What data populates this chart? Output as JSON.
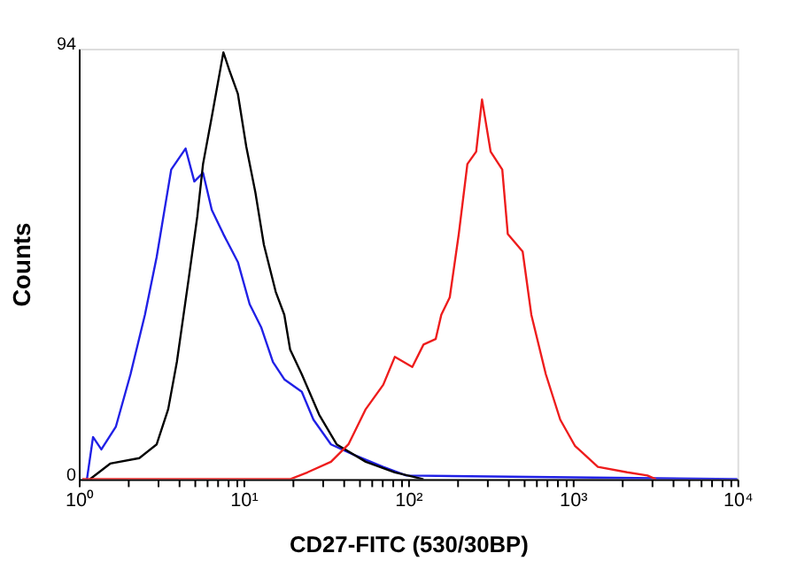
{
  "chart_data": {
    "type": "line",
    "xlabel": "CD27-FITC (530/30BP)",
    "ylabel": "Counts",
    "log": "x",
    "grid": false,
    "legend": false,
    "marker": "none",
    "line_style": "solid",
    "xlim": [
      1,
      10000
    ],
    "ylim": [
      0,
      94
    ],
    "yticks": [
      0,
      94
    ],
    "xticks": [
      {
        "value": 1,
        "label": "10⁰"
      },
      {
        "value": 2,
        "label": null
      },
      {
        "value": 3,
        "label": null
      },
      {
        "value": 4,
        "label": null
      },
      {
        "value": 5,
        "label": null
      },
      {
        "value": 6,
        "label": null
      },
      {
        "value": 7,
        "label": null
      },
      {
        "value": 8,
        "label": null
      },
      {
        "value": 9,
        "label": null
      },
      {
        "value": 10,
        "label": "10¹"
      },
      {
        "value": 20,
        "label": null
      },
      {
        "value": 30,
        "label": null
      },
      {
        "value": 40,
        "label": null
      },
      {
        "value": 50,
        "label": null
      },
      {
        "value": 60,
        "label": null
      },
      {
        "value": 70,
        "label": null
      },
      {
        "value": 80,
        "label": null
      },
      {
        "value": 90,
        "label": null
      },
      {
        "value": 100,
        "label": "10²"
      },
      {
        "value": 200,
        "label": null
      },
      {
        "value": 300,
        "label": null
      },
      {
        "value": 400,
        "label": null
      },
      {
        "value": 500,
        "label": null
      },
      {
        "value": 600,
        "label": null
      },
      {
        "value": 700,
        "label": null
      },
      {
        "value": 800,
        "label": null
      },
      {
        "value": 900,
        "label": null
      },
      {
        "value": 1000,
        "label": "10³"
      },
      {
        "value": 2000,
        "label": null
      },
      {
        "value": 3000,
        "label": null
      },
      {
        "value": 4000,
        "label": null
      },
      {
        "value": 5000,
        "label": null
      },
      {
        "value": 6000,
        "label": null
      },
      {
        "value": 7000,
        "label": null
      },
      {
        "value": 8000,
        "label": null
      },
      {
        "value": 9000,
        "label": null
      },
      {
        "value": 10000,
        "label": "10⁴"
      }
    ],
    "series": [
      {
        "color": "#2020e6",
        "x": [
          1.12,
          1.22,
          1.37,
          1.68,
          2.06,
          2.52,
          2.97,
          3.64,
          4.45,
          5.03,
          5.68,
          6.42,
          7.55,
          9.25,
          10.9,
          12.8,
          15.1,
          17.7,
          22.6,
          26.6,
          34,
          47,
          70.5,
          97.5,
          10000
        ],
        "values": [
          0,
          9.2,
          6.5,
          11.5,
          22.9,
          35.9,
          48.5,
          67.6,
          72.2,
          65,
          66.9,
          58.8,
          53.5,
          47.4,
          38.2,
          33.2,
          25.6,
          21.8,
          19.1,
          13,
          7.6,
          5.3,
          2.7,
          0.8,
          0
        ]
      },
      {
        "color": "#000000",
        "x": [
          1.17,
          1.55,
          2.33,
          2.97,
          3.49,
          3.94,
          4.64,
          5.24,
          5.68,
          6.42,
          7.55,
          8.19,
          9.25,
          10.4,
          11.8,
          13.3,
          15.7,
          17.7,
          19.2,
          22.6,
          28.8,
          36.8,
          55.3,
          83,
          124
        ],
        "values": [
          0,
          3.4,
          4.6,
          7.6,
          15.3,
          25.6,
          43.6,
          57.3,
          68.8,
          79.1,
          93.2,
          89.4,
          84.1,
          72.6,
          62.7,
          51.2,
          40.9,
          35.9,
          28.3,
          22.9,
          14.1,
          7.6,
          3.8,
          1.5,
          0
        ]
      },
      {
        "color": "#ee1c1c",
        "x": [
          1.05,
          19.2,
          24.5,
          34,
          43.4,
          55.3,
          70.6,
          83,
          106,
          124,
          147,
          159,
          179,
          203,
          229,
          259,
          281,
          317,
          373,
          403,
          496,
          560,
          686,
          839,
          1030,
          1420,
          2140,
          2840,
          3200
        ],
        "values": [
          0,
          0,
          1.5,
          3.8,
          7.6,
          15.3,
          20.6,
          26.7,
          24.5,
          29.4,
          30.6,
          35.9,
          39.7,
          53.5,
          68.8,
          71.5,
          82.9,
          71.5,
          67.6,
          53.5,
          49.7,
          35.9,
          22.9,
          13,
          7.3,
          2.7,
          1.5,
          0.8,
          0
        ]
      }
    ]
  }
}
